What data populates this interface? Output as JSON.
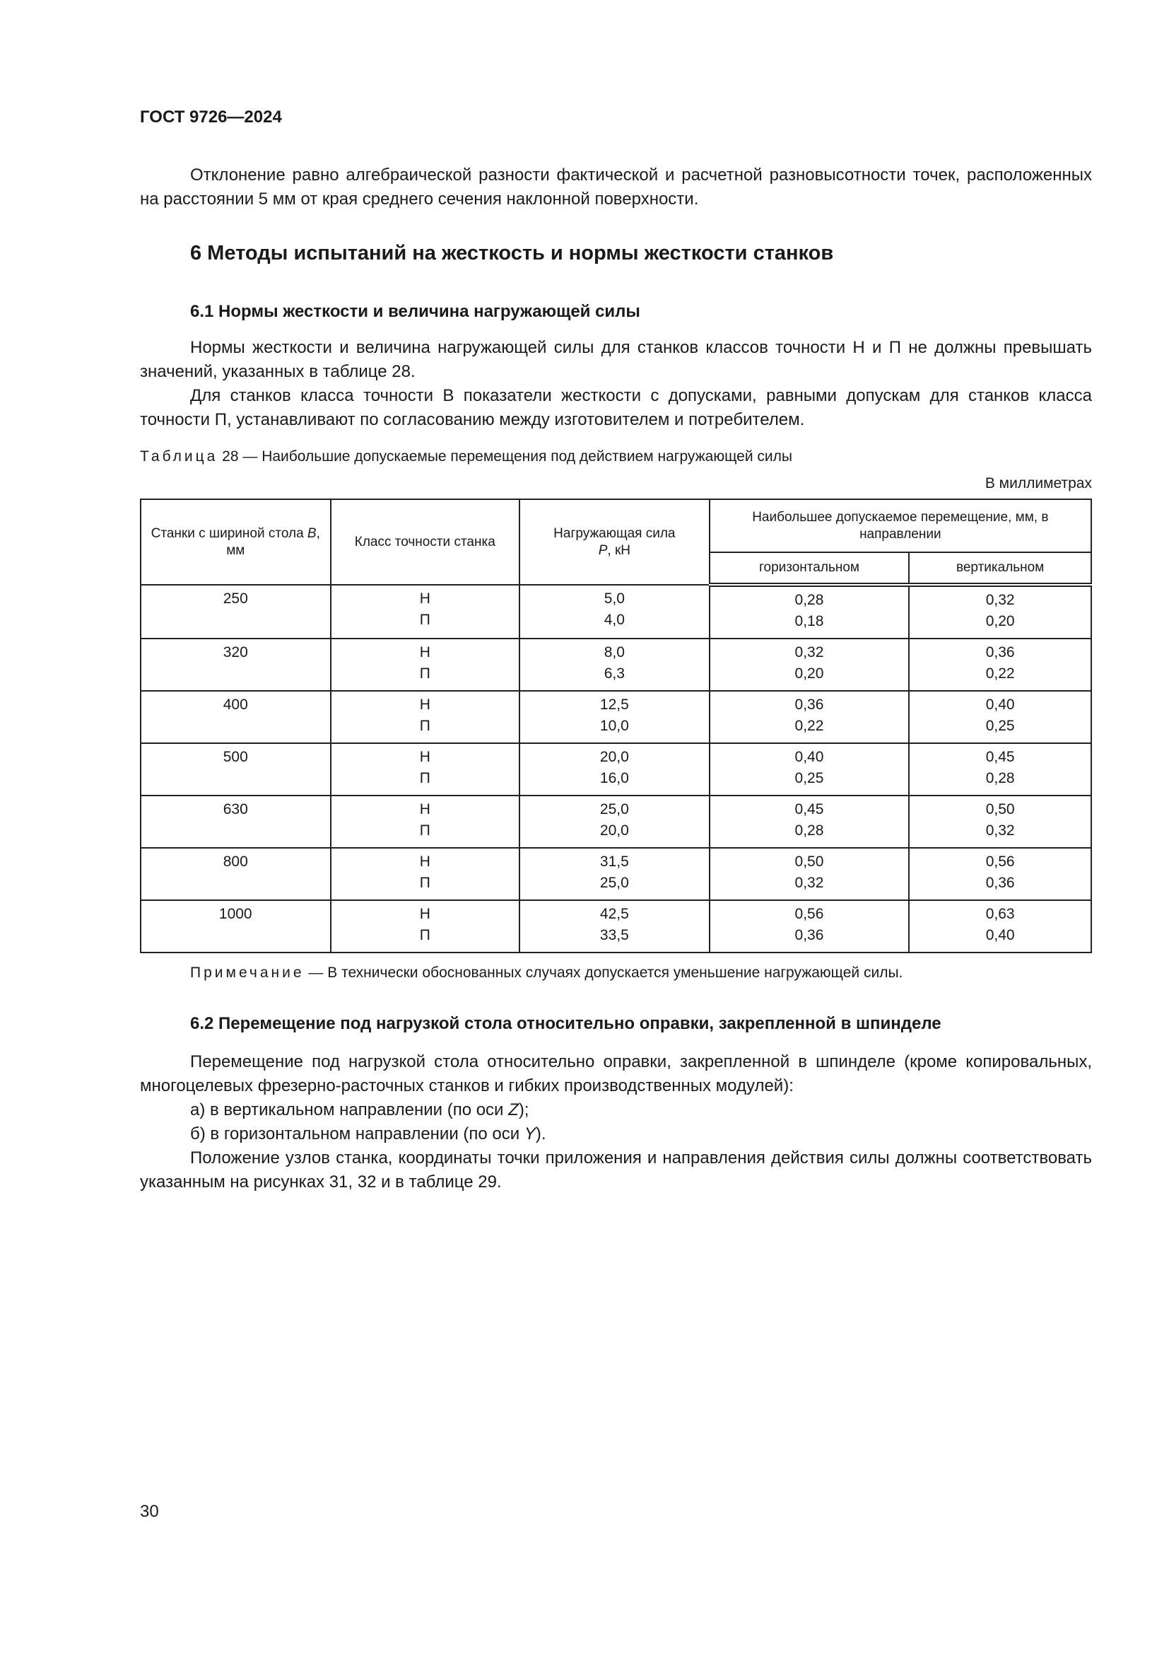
{
  "header": {
    "doc_id": "ГОСТ 9726—2024"
  },
  "intro": "Отклонение равно алгебраической разности фактической и расчетной разновысотности точек, расположенных на расстоянии 5 мм от края среднего сечения наклонной поверхности.",
  "section6": {
    "title": "6  Методы испытаний на жесткость и нормы жесткости станков"
  },
  "section61": {
    "title": "6.1  Нормы жесткости и величина нагружающей силы",
    "p1": "Нормы жесткости и величина нагружающей силы для станков классов точности Н и П не должны превышать значений, указанных в таблице 28.",
    "p2": "Для станков класса точности В показатели жесткости с допусками, равными допускам для станков класса точности П, устанавливают по согласованию между изготовителем и потребителем."
  },
  "table": {
    "caption_label": "Таблица",
    "caption_text": " 28 — Наибольшие допускаемые перемещения под действием нагружающей силы",
    "units": "В миллиметрах",
    "headers": {
      "width_a": "Станки с шириной стола ",
      "width_var": "B",
      "width_b": ", мм",
      "class": "Класс точности станка",
      "force_a": "Нагружающая сила ",
      "force_var": "P",
      "force_b": ", кН",
      "disp": "Наибольшее допускаемое перемещение, мм, в  направлении",
      "horiz": "горизонтальном",
      "vert": "вертикальном"
    },
    "rows": [
      {
        "width": "250",
        "class": [
          "Н",
          "П"
        ],
        "force": [
          "5,0",
          "4,0"
        ],
        "horiz": [
          "0,28",
          "0,18"
        ],
        "vert": [
          "0,32",
          "0,20"
        ]
      },
      {
        "width": "320",
        "class": [
          "Н",
          "П"
        ],
        "force": [
          "8,0",
          "6,3"
        ],
        "horiz": [
          "0,32",
          "0,20"
        ],
        "vert": [
          "0,36",
          "0,22"
        ]
      },
      {
        "width": "400",
        "class": [
          "Н",
          "П"
        ],
        "force": [
          "12,5",
          "10,0"
        ],
        "horiz": [
          "0,36",
          "0,22"
        ],
        "vert": [
          "0,40",
          "0,25"
        ]
      },
      {
        "width": "500",
        "class": [
          "Н",
          "П"
        ],
        "force": [
          "20,0",
          "16,0"
        ],
        "horiz": [
          "0,40",
          "0,25"
        ],
        "vert": [
          "0,45",
          "0,28"
        ]
      },
      {
        "width": "630",
        "class": [
          "Н",
          "П"
        ],
        "force": [
          "25,0",
          "20,0"
        ],
        "horiz": [
          "0,45",
          "0,28"
        ],
        "vert": [
          "0,50",
          "0,32"
        ]
      },
      {
        "width": "800",
        "class": [
          "Н",
          "П"
        ],
        "force": [
          "31,5",
          "25,0"
        ],
        "horiz": [
          "0,50",
          "0,32"
        ],
        "vert": [
          "0,56",
          "0,36"
        ]
      },
      {
        "width": "1000",
        "class": [
          "Н",
          "П"
        ],
        "force": [
          "42,5",
          "33,5"
        ],
        "horiz": [
          "0,56",
          "0,36"
        ],
        "vert": [
          "0,63",
          "0,40"
        ]
      }
    ]
  },
  "note": {
    "label": "Примечание",
    "text": " — В технически обоснованных случаях допускается уменьшение нагружающей силы."
  },
  "section62": {
    "title": "6.2  Перемещение под нагрузкой стола относительно оправки, закрепленной в шпинделе",
    "p1": "Перемещение под нагрузкой стола относительно оправки, закрепленной в шпинделе (кроме копи­ровальных, многоцелевых фрезерно-расточных станков и гибких производственных модулей):",
    "a_text": "а)  в вертикальном направлении (по оси ",
    "a_var": "Z",
    "a_end": ");",
    "b_text": "б)  в горизонтальном направлении (по оси ",
    "b_var": "Y",
    "b_end": ").",
    "p2": "Положение узлов станка, координаты точки приложения и направления действия силы должны соответствовать указанным на рисунках 31, 32 и в таблице 29."
  },
  "footer": {
    "page_number": "30"
  }
}
